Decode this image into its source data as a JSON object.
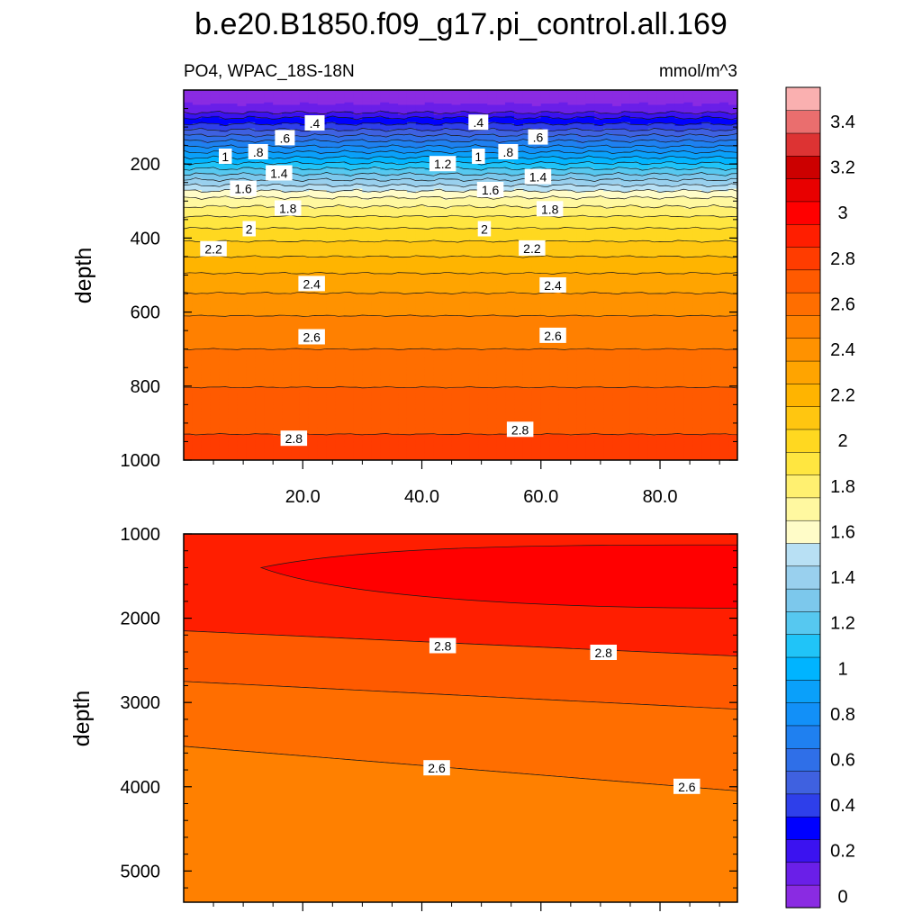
{
  "chart_data": {
    "type": "heatmap",
    "title": "b.e20.B1850.f09_g17.pi_control.all.169",
    "subtitle_left": "PO4, WPAC_18S-18N",
    "subtitle_right": "mmol/m^3",
    "colorbar": {
      "levels": [
        0,
        0.1,
        0.2,
        0.3,
        0.4,
        0.5,
        0.6,
        0.7,
        0.8,
        0.9,
        1.0,
        1.1,
        1.2,
        1.3,
        1.4,
        1.5,
        1.6,
        1.7,
        1.8,
        1.9,
        2.0,
        2.1,
        2.2,
        2.3,
        2.4,
        2.5,
        2.6,
        2.7,
        2.8,
        2.9,
        3.0,
        3.1,
        3.2,
        3.3,
        3.4,
        3.5
      ],
      "tick_labels": [
        "0",
        "0.2",
        "0.4",
        "0.6",
        "0.8",
        "1",
        "1.2",
        "1.4",
        "1.6",
        "1.8",
        "2",
        "2.2",
        "2.4",
        "2.6",
        "2.8",
        "3",
        "3.2",
        "3.4"
      ],
      "tick_values": [
        0,
        0.2,
        0.4,
        0.6,
        0.8,
        1.0,
        1.2,
        1.4,
        1.6,
        1.8,
        2.0,
        2.2,
        2.4,
        2.6,
        2.8,
        3.0,
        3.2,
        3.4
      ],
      "colors": [
        "#8a2be2",
        "#6a1fe8",
        "#3b12f0",
        "#0000ff",
        "#2e3fea",
        "#3f61e0",
        "#2f6fe8",
        "#1f80f0",
        "#1290f8",
        "#0aa0fa",
        "#00b4ff",
        "#20c4f8",
        "#56c8f0",
        "#7cc8ec",
        "#99d0ee",
        "#b8e0f4",
        "#fffcc8",
        "#fff8a0",
        "#fff070",
        "#ffe640",
        "#ffd820",
        "#ffc610",
        "#ffb400",
        "#ffa400",
        "#ff9200",
        "#ff8000",
        "#ff6e00",
        "#ff5a00",
        "#ff3c00",
        "#ff1e00",
        "#ff0000",
        "#e80000",
        "#cc0000",
        "#dd3333",
        "#ea6e6e",
        "#fab0b0"
      ]
    },
    "panels": [
      {
        "id": "upper",
        "ylabel": "depth",
        "ylim": [
          0,
          1000
        ],
        "yticks": [
          200,
          400,
          600,
          800,
          1000
        ],
        "yticklabels": [
          "200",
          "400",
          "600",
          "800",
          "1000"
        ],
        "xlim": [
          0,
          93
        ],
        "xticks": [
          20,
          40,
          60,
          80
        ],
        "xticklabels": [
          "20.0",
          "40.0",
          "60.0",
          "80.0"
        ],
        "depths": [
          0,
          25,
          50,
          75,
          100,
          115,
          130,
          145,
          160,
          175,
          190,
          205,
          220,
          235,
          250,
          265,
          280,
          295,
          315,
          335,
          360,
          390,
          420,
          450,
          480,
          520,
          560,
          610,
          660,
          720,
          780,
          850,
          930,
          1000
        ],
        "profile": [
          0.08,
          0.08,
          0.12,
          0.3,
          0.45,
          0.55,
          0.65,
          0.75,
          0.85,
          0.95,
          1.05,
          1.15,
          1.25,
          1.35,
          1.45,
          1.55,
          1.65,
          1.72,
          1.8,
          1.88,
          1.96,
          2.05,
          2.13,
          2.2,
          2.27,
          2.35,
          2.42,
          2.5,
          2.56,
          2.62,
          2.68,
          2.74,
          2.8,
          2.84
        ],
        "contour_labels": [
          {
            "text": ".4",
            "x": 22,
            "depth": 90
          },
          {
            "text": ".4",
            "x": 49.5,
            "depth": 88
          },
          {
            "text": ".6",
            "x": 17,
            "depth": 130
          },
          {
            "text": ".6",
            "x": 59.5,
            "depth": 128
          },
          {
            "text": ".8",
            "x": 12.5,
            "depth": 168
          },
          {
            "text": ".8",
            "x": 54.5,
            "depth": 168
          },
          {
            "text": "1",
            "x": 7,
            "depth": 180
          },
          {
            "text": "1",
            "x": 49.5,
            "depth": 180
          },
          {
            "text": "1.2",
            "x": 43.5,
            "depth": 200
          },
          {
            "text": "1.4",
            "x": 16,
            "depth": 225
          },
          {
            "text": "1.4",
            "x": 59.5,
            "depth": 235
          },
          {
            "text": "1.6",
            "x": 10,
            "depth": 267
          },
          {
            "text": "1.6",
            "x": 51.5,
            "depth": 270
          },
          {
            "text": "1.8",
            "x": 17.5,
            "depth": 320
          },
          {
            "text": "1.8",
            "x": 61.5,
            "depth": 322
          },
          {
            "text": "2",
            "x": 11,
            "depth": 376
          },
          {
            "text": "2",
            "x": 50.5,
            "depth": 376
          },
          {
            "text": "2.2",
            "x": 5,
            "depth": 430
          },
          {
            "text": "2.2",
            "x": 58.5,
            "depth": 428
          },
          {
            "text": "2.4",
            "x": 21.5,
            "depth": 524
          },
          {
            "text": "2.4",
            "x": 62,
            "depth": 528
          },
          {
            "text": "2.6",
            "x": 21.5,
            "depth": 668
          },
          {
            "text": "2.6",
            "x": 62,
            "depth": 664
          },
          {
            "text": "2.8",
            "x": 18.5,
            "depth": 942
          },
          {
            "text": "2.8",
            "x": 56.5,
            "depth": 918
          }
        ]
      },
      {
        "id": "lower",
        "ylabel": "depth",
        "ylim": [
          1000,
          5370
        ],
        "yticks": [
          1000,
          2000,
          3000,
          4000,
          5000
        ],
        "yticklabels": [
          "1000",
          "2000",
          "3000",
          "4000",
          "5000"
        ],
        "xlim": [
          0,
          93
        ],
        "xticks": [
          20,
          40,
          60,
          80
        ],
        "regions": [
          {
            "level_index": 29,
            "top_left": 1000,
            "bottom_left": 2150,
            "top_right": 1000,
            "bottom_right": 2450
          },
          {
            "level_index": 30,
            "tip_x": 13,
            "tip_depth": 1400,
            "top_right": 1130,
            "bottom_right": 1880
          },
          {
            "level_index": 27,
            "top_left": 2150,
            "bottom_left": 2750,
            "top_right": 2450,
            "bottom_right": 3080
          },
          {
            "level_index": 26,
            "top_left": 2750,
            "bottom_left": 3520,
            "top_right": 3080,
            "bottom_right": 4050
          },
          {
            "level_index": 25,
            "top_left": 3520,
            "bottom_left": 5370,
            "top_right": 4050,
            "bottom_right": 5370
          }
        ],
        "contour_labels": [
          {
            "text": "2.8",
            "x": 43.5,
            "depth": 2330
          },
          {
            "text": "2.8",
            "x": 70.5,
            "depth": 2410
          },
          {
            "text": "2.6",
            "x": 42.5,
            "depth": 3780
          },
          {
            "text": "2.6",
            "x": 84.5,
            "depth": 4000
          }
        ]
      }
    ]
  }
}
